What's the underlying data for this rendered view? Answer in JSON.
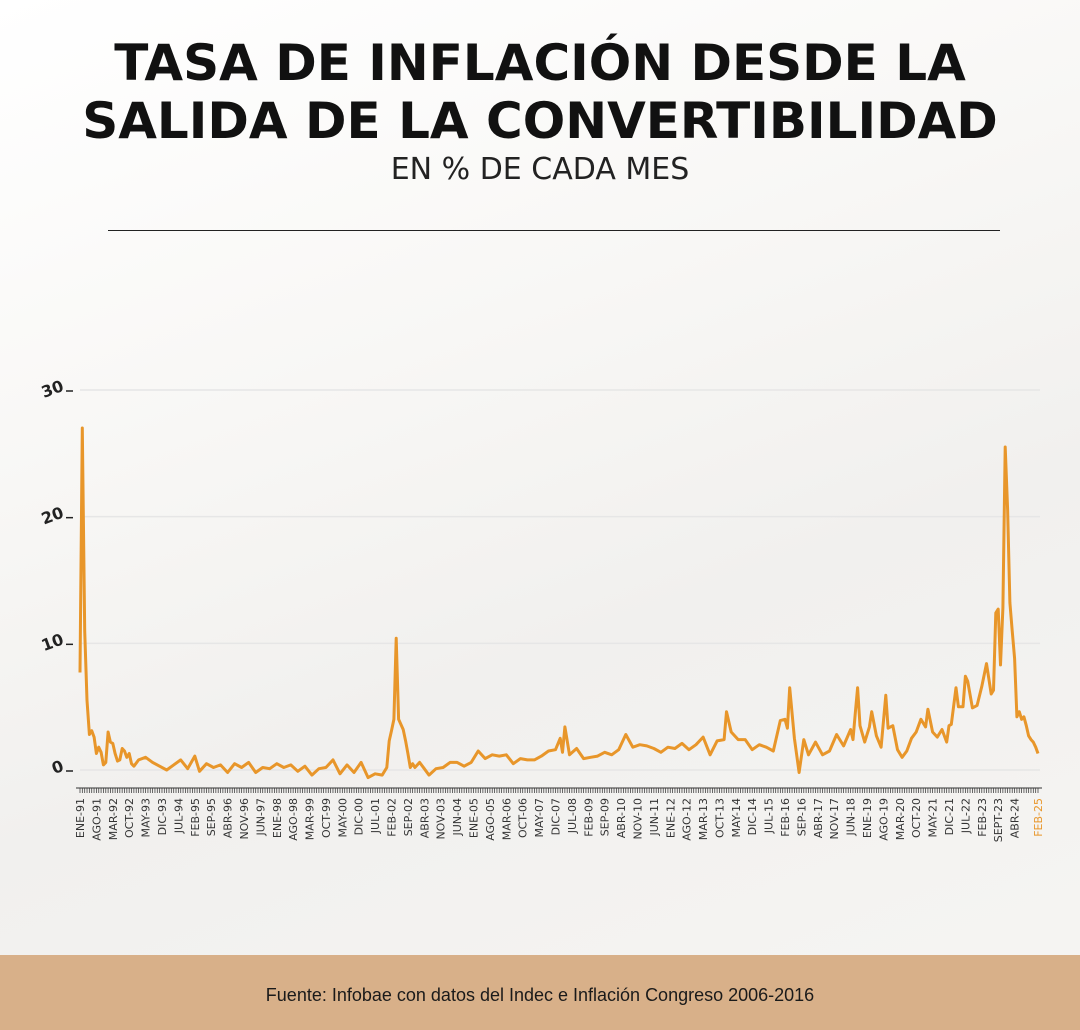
{
  "header": {
    "title_line1": "TASA DE INFLACIÓN DESDE LA",
    "title_line2": "SALIDA DE LA CONVERTIBILIDAD",
    "subtitle": "EN % DE CADA MES"
  },
  "footer": {
    "source": "Fuente: Infobae con datos del Indec e Inflación Congreso 2006-2016"
  },
  "colors": {
    "line": "#e8962a",
    "highlight_label": "#e8962a",
    "footer_band": "#d8b089",
    "grid": "#e6e6e6"
  },
  "chart_data": {
    "type": "line",
    "title": "TASA DE INFLACIÓN DESDE LA SALIDA DE LA CONVERTIBILIDAD",
    "subtitle": "EN % DE CADA MES",
    "ylim": [
      0,
      30
    ],
    "yticks": [
      "0",
      "10",
      "20",
      "30"
    ],
    "grid": true,
    "x_start": "1991-01",
    "x_end": "2025-02",
    "xticks": [
      {
        "label": "ENE-91",
        "month": "1991-01"
      },
      {
        "label": "AGO-91",
        "month": "1991-08"
      },
      {
        "label": "MAR-92",
        "month": "1992-03"
      },
      {
        "label": "OCT-92",
        "month": "1992-10"
      },
      {
        "label": "MAY-93",
        "month": "1993-05"
      },
      {
        "label": "DIC-93",
        "month": "1993-12"
      },
      {
        "label": "JUL-94",
        "month": "1994-07"
      },
      {
        "label": "FEB-95",
        "month": "1995-02"
      },
      {
        "label": "SEP-95",
        "month": "1995-09"
      },
      {
        "label": "ABR-96",
        "month": "1996-04"
      },
      {
        "label": "NOV-96",
        "month": "1996-11"
      },
      {
        "label": "JUN-97",
        "month": "1997-06"
      },
      {
        "label": "ENE-98",
        "month": "1998-01"
      },
      {
        "label": "AGO-98",
        "month": "1998-08"
      },
      {
        "label": "MAR-99",
        "month": "1999-03"
      },
      {
        "label": "OCT-99",
        "month": "1999-10"
      },
      {
        "label": "MAY-00",
        "month": "2000-05"
      },
      {
        "label": "DIC-00",
        "month": "2000-12"
      },
      {
        "label": "JUL-01",
        "month": "2001-07"
      },
      {
        "label": "FEB-02",
        "month": "2002-02"
      },
      {
        "label": "SEP-02",
        "month": "2002-09"
      },
      {
        "label": "ABR-03",
        "month": "2003-04"
      },
      {
        "label": "NOV-03",
        "month": "2003-11"
      },
      {
        "label": "JUN-04",
        "month": "2004-06"
      },
      {
        "label": "ENE-05",
        "month": "2005-01"
      },
      {
        "label": "AGO-05",
        "month": "2005-08"
      },
      {
        "label": "MAR-06",
        "month": "2006-03"
      },
      {
        "label": "OCT-06",
        "month": "2006-10"
      },
      {
        "label": "MAY-07",
        "month": "2007-05"
      },
      {
        "label": "DIC-07",
        "month": "2007-12"
      },
      {
        "label": "JUL-08",
        "month": "2008-07"
      },
      {
        "label": "FEB-09",
        "month": "2009-02"
      },
      {
        "label": "SEP-09",
        "month": "2009-09"
      },
      {
        "label": "ABR-10",
        "month": "2010-04"
      },
      {
        "label": "NOV-10",
        "month": "2010-11"
      },
      {
        "label": "JUN-11",
        "month": "2011-06"
      },
      {
        "label": "ENE-12",
        "month": "2012-01"
      },
      {
        "label": "AGO-12",
        "month": "2012-08"
      },
      {
        "label": "MAR-13",
        "month": "2013-03"
      },
      {
        "label": "OCT-13",
        "month": "2013-10"
      },
      {
        "label": "MAY-14",
        "month": "2014-05"
      },
      {
        "label": "DIC-14",
        "month": "2014-12"
      },
      {
        "label": "JUL-15",
        "month": "2015-07"
      },
      {
        "label": "FEB-16",
        "month": "2016-02"
      },
      {
        "label": "SEP-16",
        "month": "2016-09"
      },
      {
        "label": "ABR-17",
        "month": "2017-04"
      },
      {
        "label": "NOV-17",
        "month": "2017-11"
      },
      {
        "label": "JUN-18",
        "month": "2018-06"
      },
      {
        "label": "ENE-19",
        "month": "2019-01"
      },
      {
        "label": "AGO-19",
        "month": "2019-08"
      },
      {
        "label": "MAR-20",
        "month": "2020-03"
      },
      {
        "label": "OCT-20",
        "month": "2020-10"
      },
      {
        "label": "MAY-21",
        "month": "2021-05"
      },
      {
        "label": "DIC-21",
        "month": "2021-12"
      },
      {
        "label": "JUL-22",
        "month": "2022-07"
      },
      {
        "label": "FEB-23",
        "month": "2023-02"
      },
      {
        "label": "SEPT-23",
        "month": "2023-09"
      },
      {
        "label": "ABR-24",
        "month": "2024-04"
      },
      {
        "label": "FEB-25",
        "month": "2025-02",
        "highlight": true
      }
    ],
    "series": [
      {
        "points": [
          [
            "1991-01",
            7.7
          ],
          [
            "1991-02",
            27.0
          ],
          [
            "1991-03",
            11.0
          ],
          [
            "1991-04",
            5.5
          ],
          [
            "1991-05",
            2.8
          ],
          [
            "1991-06",
            3.1
          ],
          [
            "1991-07",
            2.6
          ],
          [
            "1991-08",
            1.3
          ],
          [
            "1991-09",
            1.8
          ],
          [
            "1991-10",
            1.4
          ],
          [
            "1991-11",
            0.4
          ],
          [
            "1991-12",
            0.6
          ],
          [
            "1992-01",
            3.0
          ],
          [
            "1992-02",
            2.2
          ],
          [
            "1992-03",
            2.1
          ],
          [
            "1992-04",
            1.3
          ],
          [
            "1992-05",
            0.7
          ],
          [
            "1992-06",
            0.8
          ],
          [
            "1992-07",
            1.7
          ],
          [
            "1992-08",
            1.5
          ],
          [
            "1992-09",
            1.0
          ],
          [
            "1992-10",
            1.3
          ],
          [
            "1992-11",
            0.5
          ],
          [
            "1992-12",
            0.3
          ],
          [
            "1993-02",
            0.8
          ],
          [
            "1993-05",
            1.0
          ],
          [
            "1993-08",
            0.6
          ],
          [
            "1993-11",
            0.3
          ],
          [
            "1994-02",
            0.0
          ],
          [
            "1994-05",
            0.4
          ],
          [
            "1994-08",
            0.8
          ],
          [
            "1994-11",
            0.1
          ],
          [
            "1995-02",
            1.1
          ],
          [
            "1995-04",
            -0.1
          ],
          [
            "1995-07",
            0.5
          ],
          [
            "1995-10",
            0.2
          ],
          [
            "1996-01",
            0.4
          ],
          [
            "1996-04",
            -0.2
          ],
          [
            "1996-07",
            0.5
          ],
          [
            "1996-10",
            0.2
          ],
          [
            "1997-01",
            0.6
          ],
          [
            "1997-04",
            -0.2
          ],
          [
            "1997-07",
            0.2
          ],
          [
            "1997-10",
            0.1
          ],
          [
            "1998-01",
            0.5
          ],
          [
            "1998-04",
            0.2
          ],
          [
            "1998-07",
            0.4
          ],
          [
            "1998-10",
            -0.1
          ],
          [
            "1999-01",
            0.3
          ],
          [
            "1999-04",
            -0.4
          ],
          [
            "1999-07",
            0.1
          ],
          [
            "1999-10",
            0.2
          ],
          [
            "2000-01",
            0.8
          ],
          [
            "2000-04",
            -0.3
          ],
          [
            "2000-07",
            0.4
          ],
          [
            "2000-10",
            -0.2
          ],
          [
            "2001-01",
            0.6
          ],
          [
            "2001-04",
            -0.6
          ],
          [
            "2001-07",
            -0.3
          ],
          [
            "2001-10",
            -0.4
          ],
          [
            "2001-12",
            0.2
          ],
          [
            "2002-01",
            2.3
          ],
          [
            "2002-02",
            3.1
          ],
          [
            "2002-03",
            4.0
          ],
          [
            "2002-04",
            10.4
          ],
          [
            "2002-05",
            4.0
          ],
          [
            "2002-06",
            3.6
          ],
          [
            "2002-07",
            3.2
          ],
          [
            "2002-08",
            2.3
          ],
          [
            "2002-09",
            1.3
          ],
          [
            "2002-10",
            0.2
          ],
          [
            "2002-11",
            0.5
          ],
          [
            "2002-12",
            0.2
          ],
          [
            "2003-02",
            0.6
          ],
          [
            "2003-04",
            0.1
          ],
          [
            "2003-06",
            -0.4
          ],
          [
            "2003-09",
            0.1
          ],
          [
            "2003-12",
            0.2
          ],
          [
            "2004-03",
            0.6
          ],
          [
            "2004-06",
            0.6
          ],
          [
            "2004-09",
            0.3
          ],
          [
            "2004-12",
            0.6
          ],
          [
            "2005-03",
            1.5
          ],
          [
            "2005-06",
            0.9
          ],
          [
            "2005-09",
            1.2
          ],
          [
            "2005-12",
            1.1
          ],
          [
            "2006-03",
            1.2
          ],
          [
            "2006-06",
            0.5
          ],
          [
            "2006-09",
            0.9
          ],
          [
            "2006-12",
            0.8
          ],
          [
            "2007-03",
            0.8
          ],
          [
            "2007-06",
            1.1
          ],
          [
            "2007-09",
            1.5
          ],
          [
            "2007-12",
            1.6
          ],
          [
            "2008-02",
            2.5
          ],
          [
            "2008-03",
            1.4
          ],
          [
            "2008-04",
            3.4
          ],
          [
            "2008-06",
            1.2
          ],
          [
            "2008-09",
            1.7
          ],
          [
            "2008-12",
            0.9
          ],
          [
            "2009-03",
            1.0
          ],
          [
            "2009-06",
            1.1
          ],
          [
            "2009-09",
            1.4
          ],
          [
            "2009-12",
            1.2
          ],
          [
            "2010-03",
            1.6
          ],
          [
            "2010-06",
            2.8
          ],
          [
            "2010-09",
            1.8
          ],
          [
            "2010-12",
            2.0
          ],
          [
            "2011-03",
            1.9
          ],
          [
            "2011-06",
            1.7
          ],
          [
            "2011-09",
            1.4
          ],
          [
            "2011-12",
            1.8
          ],
          [
            "2012-03",
            1.7
          ],
          [
            "2012-06",
            2.1
          ],
          [
            "2012-09",
            1.6
          ],
          [
            "2012-12",
            2.0
          ],
          [
            "2013-03",
            2.6
          ],
          [
            "2013-06",
            1.2
          ],
          [
            "2013-09",
            2.3
          ],
          [
            "2013-12",
            2.4
          ],
          [
            "2014-01",
            4.6
          ],
          [
            "2014-03",
            3.0
          ],
          [
            "2014-06",
            2.4
          ],
          [
            "2014-09",
            2.4
          ],
          [
            "2014-12",
            1.6
          ],
          [
            "2015-03",
            2.0
          ],
          [
            "2015-06",
            1.8
          ],
          [
            "2015-09",
            1.5
          ],
          [
            "2015-12",
            3.9
          ],
          [
            "2016-02",
            4.0
          ],
          [
            "2016-03",
            3.3
          ],
          [
            "2016-04",
            6.5
          ],
          [
            "2016-06",
            2.5
          ],
          [
            "2016-08",
            -0.2
          ],
          [
            "2016-10",
            2.4
          ],
          [
            "2016-12",
            1.2
          ],
          [
            "2017-03",
            2.2
          ],
          [
            "2017-06",
            1.2
          ],
          [
            "2017-09",
            1.5
          ],
          [
            "2017-12",
            2.8
          ],
          [
            "2018-03",
            1.9
          ],
          [
            "2018-06",
            3.2
          ],
          [
            "2018-07",
            2.4
          ],
          [
            "2018-08",
            4.5
          ],
          [
            "2018-09",
            6.5
          ],
          [
            "2018-10",
            3.5
          ],
          [
            "2018-12",
            2.2
          ],
          [
            "2019-02",
            3.4
          ],
          [
            "2019-03",
            4.6
          ],
          [
            "2019-05",
            2.7
          ],
          [
            "2019-07",
            1.8
          ],
          [
            "2019-09",
            5.9
          ],
          [
            "2019-10",
            3.3
          ],
          [
            "2019-12",
            3.5
          ],
          [
            "2020-02",
            1.6
          ],
          [
            "2020-04",
            1.0
          ],
          [
            "2020-06",
            1.5
          ],
          [
            "2020-08",
            2.5
          ],
          [
            "2020-10",
            3.0
          ],
          [
            "2020-12",
            4.0
          ],
          [
            "2021-02",
            3.4
          ],
          [
            "2021-03",
            4.8
          ],
          [
            "2021-05",
            3.0
          ],
          [
            "2021-07",
            2.6
          ],
          [
            "2021-09",
            3.2
          ],
          [
            "2021-11",
            2.2
          ],
          [
            "2021-12",
            3.5
          ],
          [
            "2022-01",
            3.6
          ],
          [
            "2022-03",
            6.5
          ],
          [
            "2022-04",
            5.0
          ],
          [
            "2022-06",
            5.0
          ],
          [
            "2022-07",
            7.4
          ],
          [
            "2022-08",
            7.0
          ],
          [
            "2022-10",
            4.9
          ],
          [
            "2022-12",
            5.1
          ],
          [
            "2023-02",
            6.6
          ],
          [
            "2023-04",
            8.4
          ],
          [
            "2023-06",
            6.0
          ],
          [
            "2023-07",
            6.3
          ],
          [
            "2023-08",
            12.4
          ],
          [
            "2023-09",
            12.7
          ],
          [
            "2023-10",
            8.3
          ],
          [
            "2023-11",
            12.8
          ],
          [
            "2023-12",
            25.5
          ],
          [
            "2024-01",
            20.6
          ],
          [
            "2024-02",
            13.2
          ],
          [
            "2024-03",
            11.0
          ],
          [
            "2024-04",
            8.8
          ],
          [
            "2024-05",
            4.2
          ],
          [
            "2024-06",
            4.6
          ],
          [
            "2024-07",
            4.0
          ],
          [
            "2024-08",
            4.2
          ],
          [
            "2024-09",
            3.5
          ],
          [
            "2024-10",
            2.7
          ],
          [
            "2024-11",
            2.4
          ],
          [
            "2024-12",
            2.2
          ],
          [
            "2025-01",
            1.8
          ],
          [
            "2025-02",
            1.3
          ]
        ]
      }
    ]
  }
}
